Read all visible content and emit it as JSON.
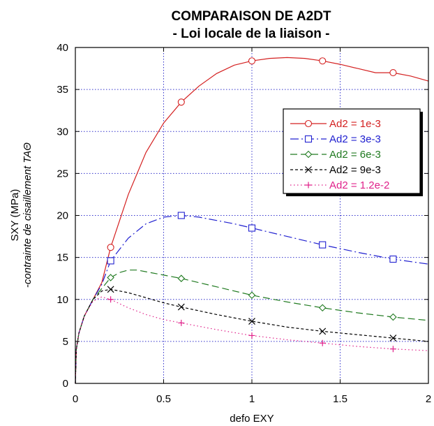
{
  "chart_data": {
    "type": "line",
    "title": "COMPARAISON DE A2DT",
    "subtitle": "- Loi locale de la liaison -",
    "xlabel": "defo EXY",
    "ylabel": "SXY (MPa)",
    "ylabel2": "-contrainte de cisaillement TAΘ",
    "xlim": [
      0,
      2
    ],
    "ylim": [
      0,
      40
    ],
    "xticks": [
      0,
      0.5,
      1,
      1.5,
      2
    ],
    "xtick_labels": [
      "0",
      "0.5",
      "1",
      "1.5",
      "2"
    ],
    "yticks": [
      0,
      5,
      10,
      15,
      20,
      25,
      30,
      35,
      40
    ],
    "ytick_labels": [
      "0",
      "5",
      "10",
      "15",
      "20",
      "25",
      "30",
      "35",
      "40"
    ],
    "grid": true,
    "legend_position": "right",
    "series": [
      {
        "name": "Ad2 = 1e-3",
        "color": "#d42020",
        "marker": "circle",
        "dash": "solid",
        "x": [
          0,
          0.005,
          0.02,
          0.05,
          0.1,
          0.15,
          0.2,
          0.3,
          0.4,
          0.5,
          0.6,
          0.7,
          0.8,
          0.9,
          1.0,
          1.1,
          1.2,
          1.3,
          1.4,
          1.5,
          1.6,
          1.7,
          1.8,
          1.9,
          2.0
        ],
        "y": [
          0,
          4.0,
          6.0,
          8.0,
          10.0,
          12.0,
          16.2,
          22.5,
          27.5,
          31.0,
          33.5,
          35.4,
          36.9,
          37.9,
          38.4,
          38.7,
          38.8,
          38.7,
          38.4,
          38.0,
          37.5,
          37.0,
          37.0,
          36.6,
          36.0
        ],
        "markers_x": [
          0.2,
          0.6,
          1.0,
          1.4,
          1.8
        ],
        "markers_y": [
          16.2,
          33.5,
          38.4,
          38.4,
          37.0
        ]
      },
      {
        "name": "Ad2 = 3e-3",
        "color": "#2020d0",
        "marker": "square",
        "dash": "dashdot",
        "x": [
          0,
          0.005,
          0.02,
          0.05,
          0.1,
          0.15,
          0.2,
          0.3,
          0.4,
          0.5,
          0.6,
          0.7,
          0.8,
          0.9,
          1.0,
          1.2,
          1.4,
          1.6,
          1.8,
          2.0
        ],
        "y": [
          0,
          4.0,
          6.0,
          8.0,
          10.0,
          11.8,
          14.6,
          17.3,
          19.0,
          19.8,
          20.0,
          19.8,
          19.4,
          19.0,
          18.5,
          17.5,
          16.5,
          15.6,
          14.8,
          14.2
        ],
        "markers_x": [
          0.2,
          0.6,
          1.0,
          1.4,
          1.8
        ],
        "markers_y": [
          14.6,
          20.0,
          18.5,
          16.5,
          14.8
        ]
      },
      {
        "name": "Ad2 = 6e-3",
        "color": "#207a20",
        "marker": "diamond",
        "dash": "longdash",
        "x": [
          0,
          0.005,
          0.02,
          0.05,
          0.1,
          0.15,
          0.2,
          0.25,
          0.3,
          0.35,
          0.4,
          0.5,
          0.6,
          0.8,
          1.0,
          1.2,
          1.4,
          1.6,
          1.8,
          2.0
        ],
        "y": [
          0,
          4.0,
          6.0,
          8.0,
          10.0,
          11.3,
          12.6,
          13.2,
          13.5,
          13.5,
          13.3,
          12.9,
          12.5,
          11.5,
          10.5,
          9.7,
          9.0,
          8.4,
          7.9,
          7.5
        ],
        "markers_x": [
          0.2,
          0.6,
          1.0,
          1.4,
          1.8
        ],
        "markers_y": [
          12.6,
          12.5,
          10.5,
          9.0,
          7.9
        ]
      },
      {
        "name": "Ad2 = 9e-3",
        "color": "#000000",
        "marker": "x",
        "dash": "dashed",
        "x": [
          0,
          0.005,
          0.02,
          0.05,
          0.1,
          0.15,
          0.2,
          0.3,
          0.4,
          0.5,
          0.6,
          0.8,
          1.0,
          1.2,
          1.4,
          1.6,
          1.8,
          2.0
        ],
        "y": [
          0,
          4.0,
          6.0,
          8.0,
          10.0,
          11.0,
          11.2,
          10.8,
          10.2,
          9.6,
          9.1,
          8.2,
          7.4,
          6.7,
          6.2,
          5.8,
          5.4,
          5.0
        ],
        "markers_x": [
          0.2,
          0.6,
          1.0,
          1.4,
          1.8
        ],
        "markers_y": [
          11.2,
          9.1,
          7.4,
          6.2,
          5.4
        ]
      },
      {
        "name": "Ad2 = 1.2e-2",
        "color": "#e0208a",
        "marker": "plus",
        "dash": "dotted",
        "x": [
          0,
          0.005,
          0.02,
          0.05,
          0.1,
          0.15,
          0.2,
          0.3,
          0.4,
          0.5,
          0.6,
          0.8,
          1.0,
          1.2,
          1.4,
          1.6,
          1.8,
          2.0
        ],
        "y": [
          0,
          4.0,
          6.0,
          8.0,
          9.8,
          10.3,
          10.0,
          9.0,
          8.2,
          7.6,
          7.2,
          6.4,
          5.7,
          5.2,
          4.8,
          4.4,
          4.1,
          3.9
        ],
        "markers_x": [
          0.2,
          0.6,
          1.0,
          1.4,
          1.8
        ],
        "markers_y": [
          10.0,
          7.2,
          5.7,
          4.8,
          4.1
        ]
      }
    ]
  }
}
